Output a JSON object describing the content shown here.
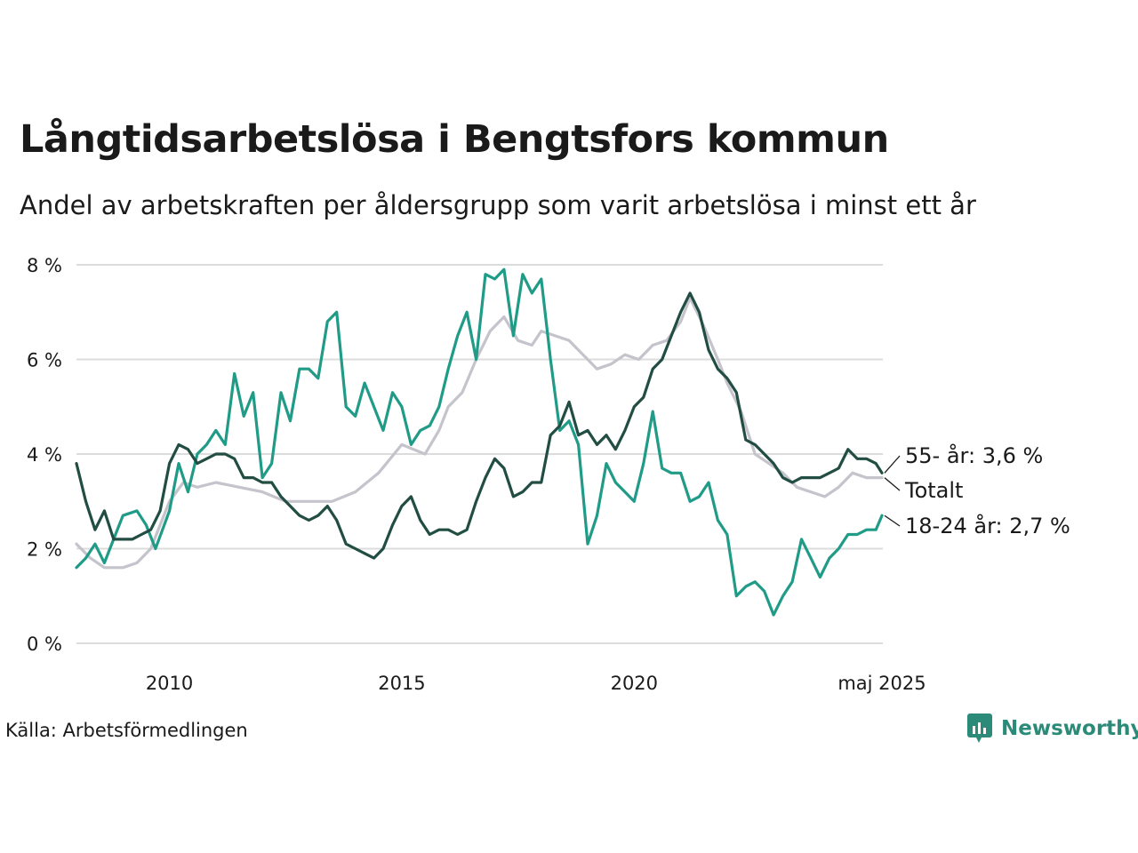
{
  "chart_data": {
    "type": "line",
    "title": "Långtidsarbetslösa i Bengtsfors kommun",
    "subtitle": "Andel av arbetskraften per åldersgrupp som varit arbetslösa i minst ett år",
    "ylim": [
      0,
      8
    ],
    "xlim": [
      2008.0,
      2025.35
    ],
    "y_ticks": [
      0,
      2,
      4,
      6,
      8
    ],
    "y_tick_labels": [
      "0 %",
      "2 %",
      "4 %",
      "6 %",
      "8 %"
    ],
    "x_ticks": [
      2010,
      2015,
      2020,
      2025.33
    ],
    "x_tick_labels": [
      "2010",
      "2015",
      "2020",
      "maj 2025"
    ],
    "grid": true,
    "source": "Källa: Arbetsförmedlingen",
    "series": [
      {
        "name": "Totalt",
        "label": "Totalt",
        "color": "#c5c3cb",
        "points": [
          [
            2008.0,
            2.1
          ],
          [
            2008.3,
            1.8
          ],
          [
            2008.6,
            1.6
          ],
          [
            2009.0,
            1.6
          ],
          [
            2009.3,
            1.7
          ],
          [
            2009.6,
            2.0
          ],
          [
            2010.0,
            3.0
          ],
          [
            2010.3,
            3.4
          ],
          [
            2010.6,
            3.3
          ],
          [
            2011.0,
            3.4
          ],
          [
            2011.5,
            3.3
          ],
          [
            2012.0,
            3.2
          ],
          [
            2012.5,
            3.0
          ],
          [
            2013.0,
            3.0
          ],
          [
            2013.5,
            3.0
          ],
          [
            2014.0,
            3.2
          ],
          [
            2014.5,
            3.6
          ],
          [
            2015.0,
            4.2
          ],
          [
            2015.5,
            4.0
          ],
          [
            2015.8,
            4.5
          ],
          [
            2016.0,
            5.0
          ],
          [
            2016.3,
            5.3
          ],
          [
            2016.6,
            6.0
          ],
          [
            2016.9,
            6.6
          ],
          [
            2017.2,
            6.9
          ],
          [
            2017.5,
            6.4
          ],
          [
            2017.8,
            6.3
          ],
          [
            2018.0,
            6.6
          ],
          [
            2018.3,
            6.5
          ],
          [
            2018.6,
            6.4
          ],
          [
            2018.9,
            6.1
          ],
          [
            2019.2,
            5.8
          ],
          [
            2019.5,
            5.9
          ],
          [
            2019.8,
            6.1
          ],
          [
            2020.1,
            6.0
          ],
          [
            2020.4,
            6.3
          ],
          [
            2020.7,
            6.4
          ],
          [
            2021.0,
            6.8
          ],
          [
            2021.2,
            7.3
          ],
          [
            2021.5,
            6.7
          ],
          [
            2021.8,
            6.0
          ],
          [
            2022.0,
            5.5
          ],
          [
            2022.3,
            4.9
          ],
          [
            2022.6,
            4.0
          ],
          [
            2022.9,
            3.8
          ],
          [
            2023.2,
            3.6
          ],
          [
            2023.5,
            3.3
          ],
          [
            2023.8,
            3.2
          ],
          [
            2024.1,
            3.1
          ],
          [
            2024.4,
            3.3
          ],
          [
            2024.7,
            3.6
          ],
          [
            2025.0,
            3.5
          ],
          [
            2025.2,
            3.5
          ],
          [
            2025.33,
            3.5
          ]
        ]
      },
      {
        "name": "18-24 år",
        "label": "18-24 år: 2,7 %",
        "last_value": 2.7,
        "color": "#1f9b87",
        "points": [
          [
            2008.0,
            1.6
          ],
          [
            2008.2,
            1.8
          ],
          [
            2008.4,
            2.1
          ],
          [
            2008.6,
            1.7
          ],
          [
            2008.8,
            2.2
          ],
          [
            2009.0,
            2.7
          ],
          [
            2009.3,
            2.8
          ],
          [
            2009.5,
            2.5
          ],
          [
            2009.7,
            2.0
          ],
          [
            2010.0,
            2.8
          ],
          [
            2010.2,
            3.8
          ],
          [
            2010.4,
            3.2
          ],
          [
            2010.6,
            4.0
          ],
          [
            2010.8,
            4.2
          ],
          [
            2011.0,
            4.5
          ],
          [
            2011.2,
            4.2
          ],
          [
            2011.4,
            5.7
          ],
          [
            2011.6,
            4.8
          ],
          [
            2011.8,
            5.3
          ],
          [
            2012.0,
            3.5
          ],
          [
            2012.2,
            3.8
          ],
          [
            2012.4,
            5.3
          ],
          [
            2012.6,
            4.7
          ],
          [
            2012.8,
            5.8
          ],
          [
            2013.0,
            5.8
          ],
          [
            2013.2,
            5.6
          ],
          [
            2013.4,
            6.8
          ],
          [
            2013.6,
            7.0
          ],
          [
            2013.8,
            5.0
          ],
          [
            2014.0,
            4.8
          ],
          [
            2014.2,
            5.5
          ],
          [
            2014.4,
            5.0
          ],
          [
            2014.6,
            4.5
          ],
          [
            2014.8,
            5.3
          ],
          [
            2015.0,
            5.0
          ],
          [
            2015.2,
            4.2
          ],
          [
            2015.4,
            4.5
          ],
          [
            2015.6,
            4.6
          ],
          [
            2015.8,
            5.0
          ],
          [
            2016.0,
            5.8
          ],
          [
            2016.2,
            6.5
          ],
          [
            2016.4,
            7.0
          ],
          [
            2016.6,
            6.0
          ],
          [
            2016.8,
            7.8
          ],
          [
            2017.0,
            7.7
          ],
          [
            2017.2,
            7.9
          ],
          [
            2017.4,
            6.5
          ],
          [
            2017.6,
            7.8
          ],
          [
            2017.8,
            7.4
          ],
          [
            2018.0,
            7.7
          ],
          [
            2018.2,
            6.0
          ],
          [
            2018.4,
            4.5
          ],
          [
            2018.6,
            4.7
          ],
          [
            2018.8,
            4.2
          ],
          [
            2019.0,
            2.1
          ],
          [
            2019.2,
            2.7
          ],
          [
            2019.4,
            3.8
          ],
          [
            2019.6,
            3.4
          ],
          [
            2019.8,
            3.2
          ],
          [
            2020.0,
            3.0
          ],
          [
            2020.2,
            3.8
          ],
          [
            2020.4,
            4.9
          ],
          [
            2020.6,
            3.7
          ],
          [
            2020.8,
            3.6
          ],
          [
            2021.0,
            3.6
          ],
          [
            2021.2,
            3.0
          ],
          [
            2021.4,
            3.1
          ],
          [
            2021.6,
            3.4
          ],
          [
            2021.8,
            2.6
          ],
          [
            2022.0,
            2.3
          ],
          [
            2022.2,
            1.0
          ],
          [
            2022.4,
            1.2
          ],
          [
            2022.6,
            1.3
          ],
          [
            2022.8,
            1.1
          ],
          [
            2023.0,
            0.6
          ],
          [
            2023.2,
            1.0
          ],
          [
            2023.4,
            1.3
          ],
          [
            2023.6,
            2.2
          ],
          [
            2023.8,
            1.8
          ],
          [
            2024.0,
            1.4
          ],
          [
            2024.2,
            1.8
          ],
          [
            2024.4,
            2.0
          ],
          [
            2024.6,
            2.3
          ],
          [
            2024.8,
            2.3
          ],
          [
            2025.0,
            2.4
          ],
          [
            2025.2,
            2.4
          ],
          [
            2025.33,
            2.7
          ]
        ]
      },
      {
        "name": "55- år",
        "label": "55- år: 3,6 %",
        "last_value": 3.6,
        "color": "#214d42",
        "points": [
          [
            2008.0,
            3.8
          ],
          [
            2008.2,
            3.0
          ],
          [
            2008.4,
            2.4
          ],
          [
            2008.6,
            2.8
          ],
          [
            2008.8,
            2.2
          ],
          [
            2009.0,
            2.2
          ],
          [
            2009.2,
            2.2
          ],
          [
            2009.4,
            2.3
          ],
          [
            2009.6,
            2.4
          ],
          [
            2009.8,
            2.8
          ],
          [
            2010.0,
            3.8
          ],
          [
            2010.2,
            4.2
          ],
          [
            2010.4,
            4.1
          ],
          [
            2010.6,
            3.8
          ],
          [
            2010.8,
            3.9
          ],
          [
            2011.0,
            4.0
          ],
          [
            2011.2,
            4.0
          ],
          [
            2011.4,
            3.9
          ],
          [
            2011.6,
            3.5
          ],
          [
            2011.8,
            3.5
          ],
          [
            2012.0,
            3.4
          ],
          [
            2012.2,
            3.4
          ],
          [
            2012.4,
            3.1
          ],
          [
            2012.6,
            2.9
          ],
          [
            2012.8,
            2.7
          ],
          [
            2013.0,
            2.6
          ],
          [
            2013.2,
            2.7
          ],
          [
            2013.4,
            2.9
          ],
          [
            2013.6,
            2.6
          ],
          [
            2013.8,
            2.1
          ],
          [
            2014.0,
            2.0
          ],
          [
            2014.2,
            1.9
          ],
          [
            2014.4,
            1.8
          ],
          [
            2014.6,
            2.0
          ],
          [
            2014.8,
            2.5
          ],
          [
            2015.0,
            2.9
          ],
          [
            2015.2,
            3.1
          ],
          [
            2015.4,
            2.6
          ],
          [
            2015.6,
            2.3
          ],
          [
            2015.8,
            2.4
          ],
          [
            2016.0,
            2.4
          ],
          [
            2016.2,
            2.3
          ],
          [
            2016.4,
            2.4
          ],
          [
            2016.6,
            3.0
          ],
          [
            2016.8,
            3.5
          ],
          [
            2017.0,
            3.9
          ],
          [
            2017.2,
            3.7
          ],
          [
            2017.4,
            3.1
          ],
          [
            2017.6,
            3.2
          ],
          [
            2017.8,
            3.4
          ],
          [
            2018.0,
            3.4
          ],
          [
            2018.2,
            4.4
          ],
          [
            2018.4,
            4.6
          ],
          [
            2018.6,
            5.1
          ],
          [
            2018.8,
            4.4
          ],
          [
            2019.0,
            4.5
          ],
          [
            2019.2,
            4.2
          ],
          [
            2019.4,
            4.4
          ],
          [
            2019.6,
            4.1
          ],
          [
            2019.8,
            4.5
          ],
          [
            2020.0,
            5.0
          ],
          [
            2020.2,
            5.2
          ],
          [
            2020.4,
            5.8
          ],
          [
            2020.6,
            6.0
          ],
          [
            2020.8,
            6.5
          ],
          [
            2021.0,
            7.0
          ],
          [
            2021.2,
            7.4
          ],
          [
            2021.4,
            7.0
          ],
          [
            2021.6,
            6.2
          ],
          [
            2021.8,
            5.8
          ],
          [
            2022.0,
            5.6
          ],
          [
            2022.2,
            5.3
          ],
          [
            2022.4,
            4.3
          ],
          [
            2022.6,
            4.2
          ],
          [
            2022.8,
            4.0
          ],
          [
            2023.0,
            3.8
          ],
          [
            2023.2,
            3.5
          ],
          [
            2023.4,
            3.4
          ],
          [
            2023.6,
            3.5
          ],
          [
            2023.8,
            3.5
          ],
          [
            2024.0,
            3.5
          ],
          [
            2024.2,
            3.6
          ],
          [
            2024.4,
            3.7
          ],
          [
            2024.6,
            4.1
          ],
          [
            2024.8,
            3.9
          ],
          [
            2025.0,
            3.9
          ],
          [
            2025.2,
            3.8
          ],
          [
            2025.33,
            3.6
          ]
        ]
      }
    ]
  },
  "brand": {
    "name": "Newsworthy",
    "color": "#2b8a78"
  }
}
